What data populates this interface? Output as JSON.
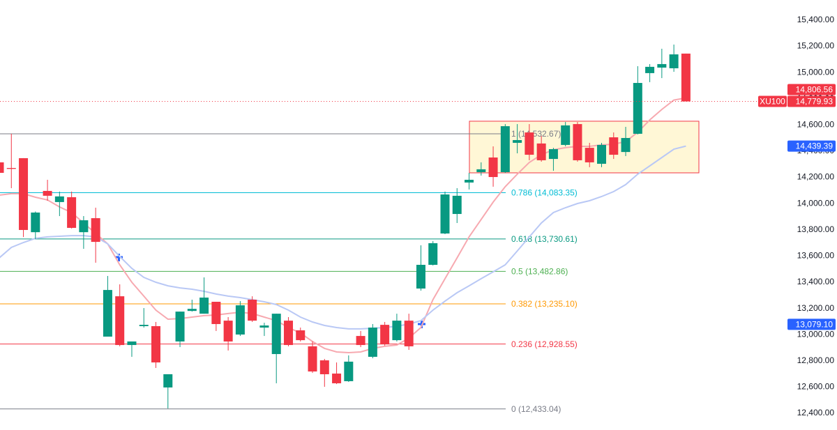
{
  "chart_data": {
    "type": "candlestick",
    "ylim": [
      12299,
      15554
    ],
    "yticks": [
      {
        "value": 12400,
        "label": "12,400.00"
      },
      {
        "value": 12600,
        "label": "12,600.00"
      },
      {
        "value": 12800,
        "label": "12,800.00"
      },
      {
        "value": 13000,
        "label": "13,000.00"
      },
      {
        "value": 13200,
        "label": "13,200.00"
      },
      {
        "value": 13400,
        "label": "13,400.00"
      },
      {
        "value": 13600,
        "label": "13,600.00"
      },
      {
        "value": 13800,
        "label": "13,800.00"
      },
      {
        "value": 14000,
        "label": "14,000.00"
      },
      {
        "value": 14200,
        "label": "14,200.00"
      },
      {
        "value": 14400,
        "label": "14,400.00"
      },
      {
        "value": 14600,
        "label": "14,600.00"
      },
      {
        "value": 14800,
        "label": "14,800.00"
      },
      {
        "value": 15000,
        "label": "15,000.00"
      },
      {
        "value": 15200,
        "label": "15,200.00"
      },
      {
        "value": 15400,
        "label": "15,400.00"
      }
    ],
    "up_color": "#089981",
    "down_color": "#f23645",
    "open": [
      14315,
      14272,
      14347,
      13782,
      14097,
      14012,
      14049,
      13782,
      13889,
      12985,
      13293,
      12921,
      13065,
      13065,
      12597,
      12948,
      13181,
      13160,
      13251,
      13107,
      13001,
      13267,
      13054,
      12852,
      13107,
      13033,
      12911,
      12804,
      12703,
      12645,
      12990,
      12831,
      13075,
      12958,
      13107,
      13352,
      13533,
      13772,
      13921,
      14161,
      14240,
      14352,
      14240,
      14464,
      14543,
      14459,
      14341,
      14448,
      14607,
      14426,
      14304,
      14506,
      14394,
      14533,
      14996,
      15038,
      15033,
      15145
    ],
    "high": [
      14340,
      14533,
      14347,
      13940,
      14182,
      14092,
      14092,
      13905,
      13969,
      13448,
      13384,
      12948,
      13203,
      13097,
      12698,
      13176,
      13267,
      13437,
      13251,
      13134,
      13256,
      13293,
      13091,
      13160,
      13134,
      13054,
      12948,
      12815,
      12788,
      12842,
      13028,
      13081,
      13097,
      13160,
      13160,
      13682,
      13714,
      14092,
      14118,
      14235,
      14315,
      14437,
      14607,
      14607,
      14607,
      14517,
      14426,
      14623,
      14623,
      14464,
      14464,
      14543,
      14586,
      15049,
      15065,
      15182,
      15214,
      15145
    ],
    "low": [
      14220,
      14118,
      13745,
      13730,
      14022,
      13905,
      13810,
      13655,
      13549,
      12985,
      12911,
      12831,
      13054,
      12746,
      12437,
      12905,
      13176,
      13160,
      13028,
      12879,
      12990,
      13097,
      12990,
      12629,
      12911,
      12948,
      12708,
      12602,
      12623,
      12639,
      12905,
      12820,
      12916,
      12948,
      12884,
      13336,
      13528,
      13767,
      13852,
      14108,
      14214,
      14129,
      14235,
      14384,
      14331,
      14320,
      14251,
      14437,
      14320,
      14278,
      14278,
      14341,
      14363,
      14528,
      14927,
      14958,
      15006,
      14779.93
    ],
    "close": [
      14235,
      14265,
      13799,
      13932,
      14060,
      14055,
      13815,
      13873,
      13708,
      13341,
      12921,
      12948,
      13075,
      12788,
      12698,
      13176,
      13197,
      13283,
      13081,
      12948,
      13224,
      13107,
      13070,
      13160,
      12921,
      12958,
      12719,
      12698,
      12629,
      12794,
      12921,
      13054,
      12926,
      13107,
      12911,
      13533,
      13698,
      14070,
      14060,
      14182,
      14262,
      14203,
      14591,
      14485,
      14373,
      14331,
      14416,
      14597,
      14331,
      14315,
      14448,
      14373,
      14501,
      14921,
      15044,
      15065,
      15139,
      14779.93
    ],
    "series": [
      {
        "color": "#f7a9b0",
        "values": [
          14065,
          14076,
          14076,
          14049,
          14028,
          13975,
          13932,
          13852,
          13772,
          13693,
          13533,
          13400,
          13294,
          13187,
          13118,
          13123,
          13134,
          13145,
          13150,
          13161,
          13171,
          13161,
          13134,
          13107,
          13054,
          13012,
          12948,
          12895,
          12868,
          12863,
          12868,
          12895,
          12911,
          12921,
          12974,
          13054,
          13267,
          13427,
          13586,
          13746,
          13879,
          14012,
          14129,
          14225,
          14315,
          14373,
          14411,
          14427,
          14437,
          14437,
          14448,
          14453,
          14474,
          14544,
          14639,
          14719,
          14790,
          14806.56
        ]
      },
      {
        "color": "#b9c8f5",
        "values": [
          13586,
          13666,
          13703,
          13735,
          13746,
          13751,
          13756,
          13756,
          13746,
          13693,
          13597,
          13506,
          13437,
          13400,
          13373,
          13357,
          13347,
          13331,
          13310,
          13294,
          13283,
          13267,
          13251,
          13230,
          13187,
          13134,
          13097,
          13070,
          13054,
          13044,
          13044,
          13049,
          13054,
          13065,
          13081,
          13107,
          13187,
          13256,
          13320,
          13373,
          13427,
          13480,
          13533,
          13639,
          13746,
          13852,
          13932,
          13969,
          14001,
          14022,
          14054,
          14092,
          14145,
          14225,
          14288,
          14352,
          14416,
          14439.39
        ]
      }
    ],
    "fib_levels": [
      {
        "value": 14532.67,
        "label": "1 (14,532.67)",
        "color": "#787b86"
      },
      {
        "value": 14083.35,
        "label": "0.786 (14,083.35)",
        "color": "#00bcd4"
      },
      {
        "value": 13730.61,
        "label": "0.618 (13,730.61)",
        "color": "#089981"
      },
      {
        "value": 13482.86,
        "label": "0.5 (13,482.86)",
        "color": "#4caf50"
      },
      {
        "value": 13235.1,
        "label": "0.382 (13,235.10)",
        "color": "#ff9800"
      },
      {
        "value": 12928.55,
        "label": "0.236 (12,928.55)",
        "color": "#f23645"
      },
      {
        "value": 12433.04,
        "label": "0 (12,433.04)",
        "color": "#787b86"
      }
    ],
    "box": {
      "top": 14629,
      "bottom": 14235,
      "color": "#f23645"
    },
    "badges": [
      {
        "value": 14806.56,
        "label": "14,806.56",
        "color": "#f23645"
      },
      {
        "value": 14779.93,
        "label": "14,779.93",
        "color": "#f23645",
        "symbol": "XU100"
      },
      {
        "value": 14439.39,
        "label": "14,439.39",
        "color": "#2962ff"
      },
      {
        "value": 13079.1,
        "label": "13,079.10",
        "color": "#2962ff"
      }
    ]
  }
}
